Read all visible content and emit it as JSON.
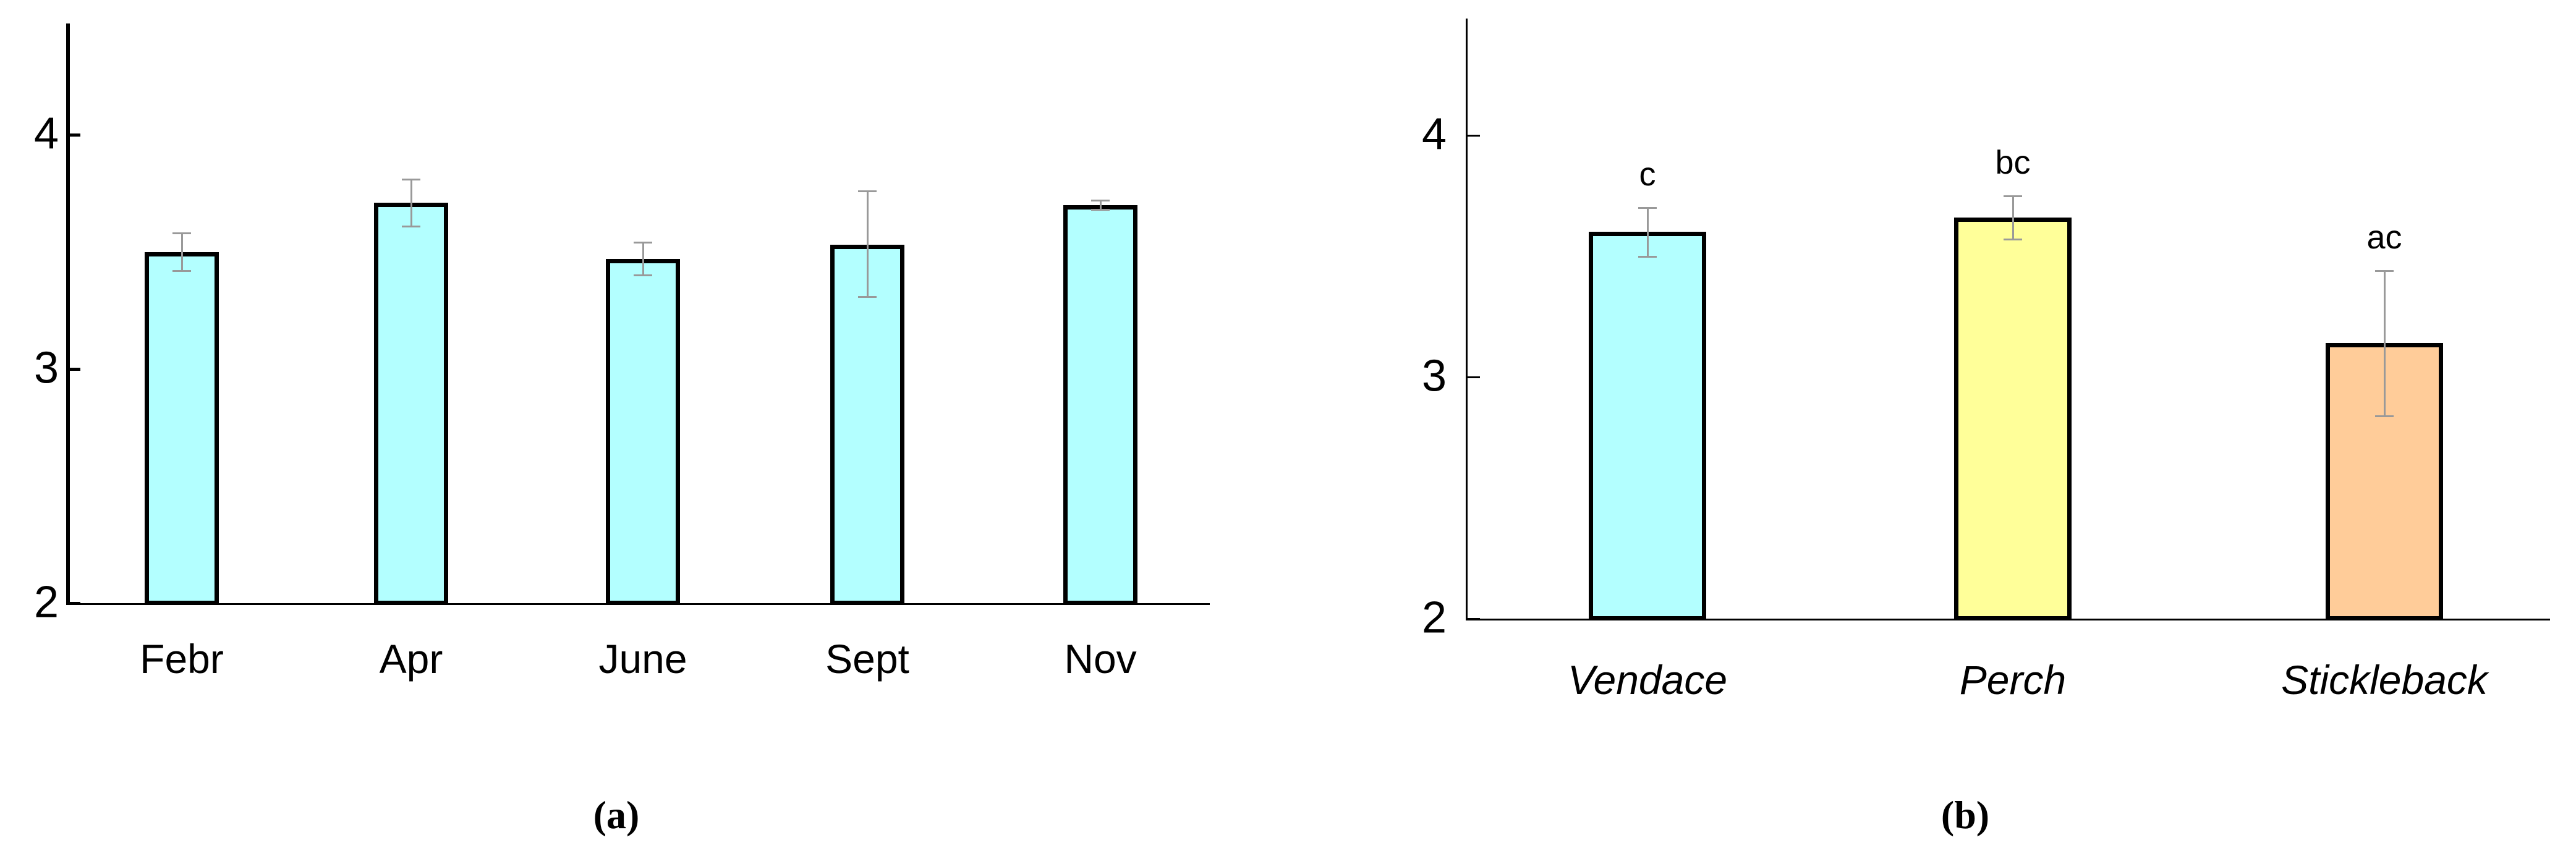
{
  "figure": {
    "background": "#ffffff",
    "captions": {
      "a": "(a)",
      "b": "(b)"
    }
  },
  "colors": {
    "bar_border": "#000000",
    "axis": "#000000",
    "error_bar": "#999999",
    "cyan_fill": "#b3ffff",
    "yellow_fill": "#ffff99",
    "orange_fill": "#ffcc99"
  },
  "chart_data": [
    {
      "id": "a",
      "type": "bar",
      "title": "",
      "xlabel": "",
      "ylabel": "",
      "caption": "(a)",
      "categories": [
        "Febr",
        "Apr",
        "June",
        "Sept",
        "Nov"
      ],
      "values": [
        3.5,
        3.71,
        3.47,
        3.53,
        3.7
      ],
      "error_high": [
        3.58,
        3.81,
        3.54,
        3.76,
        3.72
      ],
      "error_low": [
        3.42,
        3.61,
        3.4,
        3.31,
        3.68
      ],
      "bar_colors": [
        "#b3ffff",
        "#b3ffff",
        "#b3ffff",
        "#b3ffff",
        "#b3ffff"
      ],
      "ylim": [
        2,
        4.5
      ],
      "yticks": [
        4,
        3,
        2
      ],
      "grid": false,
      "legend": false,
      "italic_categories": false
    },
    {
      "id": "b",
      "type": "bar",
      "title": "",
      "xlabel": "",
      "ylabel": "",
      "caption": "(b)",
      "categories": [
        "Vendace",
        "Perch",
        "Stickleback"
      ],
      "values": [
        3.6,
        3.66,
        3.14
      ],
      "error_high": [
        3.7,
        3.75,
        3.44
      ],
      "error_low": [
        3.5,
        3.57,
        2.84
      ],
      "significance_letters": [
        "c",
        "bc",
        "ac"
      ],
      "bar_colors": [
        "#b3ffff",
        "#ffff99",
        "#ffcc99"
      ],
      "ylim": [
        2,
        4.5
      ],
      "yticks": [
        4,
        3,
        2
      ],
      "grid": false,
      "legend": false,
      "italic_categories": true
    }
  ]
}
